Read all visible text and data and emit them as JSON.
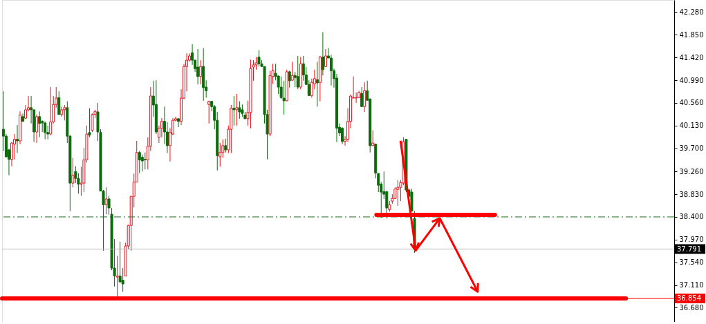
{
  "chart_data": {
    "type": "candlestick",
    "categories": [
      null,
      null,
      null,
      null,
      null,
      null,
      null,
      null,
      null,
      null,
      null,
      null,
      null,
      null,
      null,
      null,
      null,
      null,
      null,
      null,
      null,
      null,
      null,
      null,
      null,
      null,
      null,
      null,
      null,
      null,
      null,
      null,
      null,
      null,
      null,
      null,
      null,
      null,
      null,
      null,
      null,
      null,
      null,
      null,
      null,
      null,
      null,
      null,
      null,
      null,
      null,
      null,
      null,
      null,
      null,
      null,
      null,
      null,
      null,
      null,
      null,
      null,
      null,
      null,
      null,
      null,
      null,
      null,
      null,
      null,
      null,
      null,
      null,
      null,
      null,
      null,
      null,
      null,
      null,
      null,
      null,
      null,
      null,
      null,
      null,
      null,
      null,
      null,
      null,
      null,
      null,
      null,
      null,
      null,
      null,
      null,
      null,
      null,
      null,
      null,
      null,
      null,
      null,
      null,
      null,
      null,
      null,
      null,
      null,
      null,
      null,
      null,
      null,
      null,
      null,
      null,
      null,
      null,
      null,
      null,
      null,
      null,
      null,
      null,
      null,
      null,
      null,
      null,
      null,
      null,
      null,
      null,
      null,
      null,
      null,
      null,
      null,
      null,
      null,
      null,
      null,
      null,
      null,
      null,
      null,
      null,
      null,
      null,
      null,
      null,
      null,
      null,
      null,
      null,
      null,
      null,
      null,
      null,
      null,
      null,
      null,
      null,
      null,
      null,
      null,
      null,
      null,
      null,
      null,
      null,
      null,
      null,
      null,
      null,
      null,
      null,
      null,
      null,
      null,
      null,
      null,
      null,
      null,
      null,
      null,
      null,
      null,
      null,
      null,
      null,
      null,
      null,
      null,
      null,
      null,
      null,
      null,
      null,
      null,
      null,
      null,
      null,
      null,
      null,
      null,
      null,
      null,
      null,
      null,
      null,
      null,
      null,
      null,
      null,
      null,
      null,
      null,
      null,
      null,
      null,
      null,
      null,
      null,
      null,
      null,
      null,
      null,
      null,
      null,
      null,
      null,
      null,
      null,
      null,
      null,
      null,
      null,
      null,
      null,
      null,
      null,
      null
    ],
    "ohlc": [
      [
        40.06,
        40.78,
        39.65,
        39.93
      ],
      [
        39.93,
        39.97,
        39.52,
        39.54
      ],
      [
        39.67,
        39.69,
        39.19,
        39.49
      ],
      [
        39.49,
        39.82,
        39.36,
        39.8
      ],
      [
        39.78,
        39.97,
        39.49,
        39.87
      ],
      [
        39.87,
        40.14,
        39.61,
        39.84
      ],
      [
        39.84,
        40.4,
        39.78,
        40.33
      ],
      [
        40.3,
        40.36,
        40.21,
        40.21
      ],
      [
        40.27,
        40.52,
        40.26,
        40.43
      ],
      [
        40.43,
        40.69,
        40.4,
        40.47
      ],
      [
        40.47,
        40.69,
        40.17,
        40.43
      ],
      [
        40.43,
        40.43,
        39.82,
        40.01
      ],
      [
        40.01,
        40.34,
        39.8,
        40.3
      ],
      [
        40.3,
        40.4,
        39.91,
        40.17
      ],
      [
        40.21,
        40.23,
        40.01,
        40.18
      ],
      [
        40.18,
        40.21,
        39.87,
        40.0
      ],
      [
        40.0,
        40.13,
        39.87,
        39.97
      ],
      [
        39.97,
        40.86,
        39.95,
        40.2
      ],
      [
        40.2,
        40.69,
        40.17,
        40.53
      ],
      [
        40.53,
        40.86,
        40.47,
        40.65
      ],
      [
        40.66,
        40.78,
        40.34,
        40.34
      ],
      [
        40.34,
        40.49,
        40.3,
        40.43
      ],
      [
        40.43,
        40.52,
        40.23,
        40.47
      ],
      [
        40.47,
        40.59,
        39.8,
        39.93
      ],
      [
        39.93,
        39.95,
        38.51,
        39.04
      ],
      [
        39.04,
        39.52,
        38.96,
        39.19
      ],
      [
        39.26,
        39.36,
        39.04,
        39.13
      ],
      [
        39.13,
        39.23,
        38.84,
        39.02
      ],
      [
        39.02,
        39.35,
        38.8,
        39.04
      ],
      [
        39.04,
        39.71,
        38.87,
        39.48
      ],
      [
        39.48,
        40.13,
        39.43,
        39.97
      ],
      [
        40.0,
        40.46,
        39.91,
        39.95
      ],
      [
        40.04,
        40.36,
        40.01,
        40.34
      ],
      [
        40.34,
        40.43,
        40.27,
        40.4
      ],
      [
        40.39,
        40.56,
        39.84,
        40.01
      ],
      [
        40.0,
        40.06,
        38.89,
        38.89
      ],
      [
        38.89,
        38.91,
        37.76,
        38.63
      ],
      [
        38.63,
        38.96,
        38.45,
        38.74
      ],
      [
        38.74,
        38.8,
        38.44,
        38.57
      ],
      [
        38.45,
        38.57,
        37.39,
        37.43
      ],
      [
        37.43,
        37.98,
        37.08,
        37.28
      ],
      [
        37.26,
        37.66,
        36.87,
        37.28
      ],
      [
        37.28,
        37.93,
        37.15,
        37.17
      ],
      [
        37.2,
        37.43,
        36.98,
        37.13
      ],
      [
        37.28,
        37.91,
        37.28,
        37.85
      ],
      [
        37.85,
        38.25,
        37.78,
        38.24
      ],
      [
        38.24,
        38.79,
        37.76,
        38.79
      ],
      [
        38.79,
        39.22,
        38.58,
        39.06
      ],
      [
        39.06,
        39.84,
        39.06,
        39.62
      ],
      [
        39.62,
        39.65,
        39.23,
        39.48
      ],
      [
        39.53,
        39.58,
        39.26,
        39.46
      ],
      [
        39.49,
        39.62,
        39.3,
        39.48
      ],
      [
        39.48,
        39.91,
        39.3,
        39.74
      ],
      [
        39.74,
        40.86,
        39.65,
        40.69
      ],
      [
        40.69,
        40.98,
        40.3,
        40.52
      ],
      [
        40.53,
        40.99,
        39.97,
        40.01
      ],
      [
        39.91,
        40.13,
        39.8,
        40.08
      ],
      [
        40.08,
        40.27,
        39.91,
        40.21
      ],
      [
        40.21,
        40.49,
        39.78,
        40.01
      ],
      [
        40.01,
        40.2,
        39.61,
        39.75
      ],
      [
        39.75,
        40.08,
        39.45,
        40.0
      ],
      [
        39.97,
        40.27,
        39.95,
        40.23
      ],
      [
        40.23,
        40.3,
        40.21,
        40.26
      ],
      [
        40.26,
        40.27,
        40.1,
        40.21
      ],
      [
        40.21,
        40.82,
        40.14,
        40.65
      ],
      [
        40.65,
        41.3,
        40.63,
        41.25
      ],
      [
        41.25,
        41.5,
        40.78,
        41.37
      ],
      [
        41.37,
        41.5,
        41.34,
        41.45
      ],
      [
        41.51,
        41.67,
        41.28,
        41.37
      ],
      [
        41.37,
        41.38,
        41.15,
        41.21
      ],
      [
        41.24,
        41.58,
        40.91,
        41.06
      ],
      [
        41.06,
        41.37,
        40.91,
        41.25
      ],
      [
        41.25,
        41.6,
        40.6,
        40.85
      ],
      [
        40.86,
        40.99,
        40.66,
        40.79
      ],
      [
        40.53,
        40.6,
        40.17,
        40.59
      ],
      [
        40.59,
        40.6,
        40.4,
        40.49
      ],
      [
        40.49,
        40.52,
        40.06,
        40.23
      ],
      [
        40.23,
        40.39,
        39.28,
        39.56
      ],
      [
        39.54,
        39.8,
        39.35,
        39.62
      ],
      [
        39.62,
        39.87,
        39.52,
        39.75
      ],
      [
        39.75,
        39.88,
        39.62,
        39.67
      ],
      [
        39.67,
        40.13,
        39.61,
        40.06
      ],
      [
        40.06,
        40.52,
        39.61,
        40.46
      ],
      [
        40.46,
        40.69,
        40.13,
        40.43
      ],
      [
        40.43,
        40.73,
        40.13,
        40.47
      ],
      [
        40.47,
        40.59,
        40.26,
        40.39
      ],
      [
        40.43,
        40.53,
        40.3,
        40.36
      ],
      [
        40.33,
        40.39,
        40.26,
        40.26
      ],
      [
        40.26,
        40.6,
        40.13,
        40.38
      ],
      [
        40.38,
        41.38,
        40.08,
        41.21
      ],
      [
        41.24,
        41.37,
        40.98,
        41.28
      ],
      [
        41.28,
        41.43,
        41.19,
        41.32
      ],
      [
        41.43,
        41.56,
        41.25,
        41.3
      ],
      [
        41.3,
        41.37,
        41.25,
        41.25
      ],
      [
        41.25,
        41.25,
        40.17,
        40.34
      ],
      [
        40.34,
        40.43,
        39.49,
        39.97
      ],
      [
        39.97,
        41.17,
        39.93,
        41.08
      ],
      [
        41.06,
        41.3,
        40.92,
        41.17
      ],
      [
        41.12,
        41.3,
        40.99,
        41.06
      ],
      [
        41.07,
        41.08,
        40.73,
        40.86
      ],
      [
        40.86,
        41.06,
        40.63,
        40.66
      ],
      [
        40.65,
        40.98,
        40.34,
        40.6
      ],
      [
        40.6,
        41.19,
        40.59,
        41.15
      ],
      [
        41.15,
        41.17,
        40.85,
        40.98
      ],
      [
        40.99,
        41.34,
        40.98,
        41.08
      ],
      [
        41.08,
        41.15,
        40.86,
        41.04
      ],
      [
        41.06,
        41.45,
        40.82,
        40.86
      ],
      [
        40.86,
        41.43,
        40.82,
        41.3
      ],
      [
        41.3,
        41.45,
        40.98,
        41.09
      ],
      [
        41.09,
        41.24,
        40.91,
        40.91
      ],
      [
        40.91,
        40.99,
        40.69,
        40.7
      ],
      [
        40.7,
        41.02,
        40.66,
        40.95
      ],
      [
        40.92,
        41.19,
        40.82,
        41.02
      ],
      [
        41.0,
        41.34,
        40.49,
        40.94
      ],
      [
        40.95,
        41.45,
        40.59,
        41.43
      ],
      [
        41.43,
        41.9,
        41.08,
        41.19
      ],
      [
        41.25,
        41.58,
        41.24,
        41.45
      ],
      [
        41.45,
        41.6,
        41.41,
        41.41
      ],
      [
        41.41,
        41.47,
        40.89,
        41.17
      ],
      [
        41.17,
        41.21,
        40.85,
        41.02
      ],
      [
        41.03,
        41.11,
        39.82,
        40.08
      ],
      [
        40.1,
        40.17,
        39.93,
        39.99
      ],
      [
        40.08,
        40.1,
        39.78,
        39.83
      ],
      [
        39.83,
        39.93,
        39.75,
        39.87
      ],
      [
        39.87,
        40.46,
        39.82,
        40.21
      ],
      [
        40.21,
        40.72,
        40.08,
        40.69
      ],
      [
        40.65,
        41.06,
        40.65,
        40.66
      ],
      [
        40.65,
        40.76,
        40.56,
        40.66
      ],
      [
        40.66,
        40.79,
        40.65,
        40.76
      ],
      [
        40.74,
        40.86,
        40.49,
        40.49
      ],
      [
        40.49,
        40.95,
        40.39,
        40.79
      ],
      [
        40.79,
        40.98,
        40.6,
        40.61
      ],
      [
        40.63,
        40.65,
        39.62,
        39.75
      ],
      [
        39.75,
        40.04,
        39.75,
        39.8
      ],
      [
        39.78,
        39.79,
        39.13,
        39.23
      ],
      [
        39.22,
        39.23,
        38.87,
        39.0
      ],
      [
        39.02,
        39.06,
        38.38,
        38.87
      ],
      [
        38.88,
        39.26,
        38.74,
        38.83
      ],
      [
        38.88,
        38.89,
        38.37,
        38.57
      ],
      [
        38.54,
        38.7,
        38.5,
        38.63
      ],
      [
        38.7,
        38.83,
        38.65,
        38.75
      ],
      [
        38.75,
        38.96,
        38.74,
        38.93
      ],
      [
        38.92,
        39.1,
        38.61,
        38.96
      ],
      [
        38.96,
        39.1,
        38.7,
        39.05
      ],
      [
        39.04,
        39.91,
        39.0,
        39.82
      ],
      [
        39.87,
        39.87,
        38.87,
        38.91
      ],
      [
        38.91,
        38.93,
        38.79,
        38.79
      ],
      [
        38.87,
        38.93,
        38.5,
        38.51
      ],
      [
        38.37,
        38.51,
        37.72,
        37.8
      ],
      null,
      null,
      null,
      null,
      null,
      null,
      null,
      null,
      null,
      null,
      null,
      null,
      null,
      null,
      null,
      null,
      null,
      null,
      null,
      null,
      null,
      null,
      null,
      null,
      null,
      null,
      null,
      null,
      null,
      null,
      null,
      null,
      null,
      null,
      null,
      null,
      null,
      null,
      null,
      null,
      null,
      null,
      null,
      null,
      null,
      null,
      null,
      null,
      null,
      null,
      null,
      null,
      null,
      null,
      null,
      null,
      null,
      null,
      null,
      null,
      null,
      null,
      null,
      null,
      null,
      null,
      null,
      null,
      null,
      null,
      null,
      null,
      null,
      null,
      null,
      null,
      null,
      null,
      null,
      null,
      null,
      null,
      null,
      null,
      null,
      null,
      null,
      null,
      null,
      null,
      null,
      null,
      null
    ],
    "colors": [
      "#0b6b0b",
      "#0b6b0b",
      "#0b6b0b",
      "#e8111b",
      "#e8111b",
      "#0b6b0b",
      "#e8111b",
      "#0b6b0b",
      "#e8111b",
      "#e8111b",
      "#0b6b0b",
      "#0b6b0b",
      "#e8111b",
      "#0b6b0b",
      "#0b6b0b",
      "#0b6b0b",
      "#0b6b0b",
      "#e8111b",
      "#e8111b",
      "#e8111b",
      "#0b6b0b",
      "#e8111b",
      "#e8111b",
      "#0b6b0b",
      "#0b6b0b",
      "#e8111b",
      "#0b6b0b",
      "#0b6b0b",
      "#e8111b",
      "#e8111b",
      "#e8111b",
      "#0b6b0b",
      "#e8111b",
      "#e8111b",
      "#0b6b0b",
      "#0b6b0b",
      "#0b6b0b",
      "#e8111b",
      "#0b6b0b",
      "#0b6b0b",
      "#0b6b0b",
      "#e8111b",
      "#0b6b0b",
      "#0b6b0b",
      "#e8111b",
      "#e8111b",
      "#e8111b",
      "#e8111b",
      "#e8111b",
      "#0b6b0b",
      "#0b6b0b",
      "#0b6b0b",
      "#e8111b",
      "#e8111b",
      "#0b6b0b",
      "#0b6b0b",
      "#e8111b",
      "#e8111b",
      "#0b6b0b",
      "#0b6b0b",
      "#e8111b",
      "#e8111b",
      "#e8111b",
      "#0b6b0b",
      "#e8111b",
      "#e8111b",
      "#e8111b",
      "#e8111b",
      "#0b6b0b",
      "#0b6b0b",
      "#0b6b0b",
      "#e8111b",
      "#0b6b0b",
      "#0b6b0b",
      "#e8111b",
      "#0b6b0b",
      "#0b6b0b",
      "#0b6b0b",
      "#e8111b",
      "#e8111b",
      "#0b6b0b",
      "#e8111b",
      "#e8111b",
      "#0b6b0b",
      "#e8111b",
      "#0b6b0b",
      "#0b6b0b",
      "#0b6b0b",
      "#e8111b",
      "#e8111b",
      "#e8111b",
      "#e8111b",
      "#0b6b0b",
      "#0b6b0b",
      "#0b6b0b",
      "#0b6b0b",
      "#e8111b",
      "#e8111b",
      "#0b6b0b",
      "#0b6b0b",
      "#0b6b0b",
      "#0b6b0b",
      "#e8111b",
      "#0b6b0b",
      "#e8111b",
      "#0b6b0b",
      "#0b6b0b",
      "#e8111b",
      "#0b6b0b",
      "#0b6b0b",
      "#0b6b0b",
      "#e8111b",
      "#e8111b",
      "#0b6b0b",
      "#e8111b",
      "#0b6b0b",
      "#e8111b",
      "#0b6b0b",
      "#0b6b0b",
      "#0b6b0b",
      "#0b6b0b",
      "#0b6b0b",
      "#0b6b0b",
      "#e8111b",
      "#e8111b",
      "#e8111b",
      "#e8111b",
      "#e8111b",
      "#e8111b",
      "#0b6b0b",
      "#e8111b",
      "#0b6b0b",
      "#0b6b0b",
      "#e8111b",
      "#0b6b0b",
      "#0b6b0b",
      "#0b6b0b",
      "#0b6b0b",
      "#0b6b0b",
      "#e8111b",
      "#e8111b",
      "#e8111b",
      "#e8111b",
      "#e8111b",
      "#e8111b",
      "#0b6b0b",
      "#0b6b0b",
      "#0b6b0b",
      "#0b6b0b",
      null,
      null,
      null,
      null,
      null,
      null,
      null,
      null,
      null,
      null,
      null,
      null,
      null,
      null,
      null,
      null,
      null,
      null,
      null,
      null,
      null,
      null,
      null,
      null,
      null,
      null,
      null,
      null,
      null,
      null,
      null,
      null,
      null,
      null,
      null,
      null,
      null,
      null,
      null,
      null,
      null,
      null,
      null,
      null,
      null,
      null,
      null,
      null,
      null,
      null,
      null,
      null,
      null,
      null,
      null,
      null,
      null,
      null,
      null,
      null,
      null,
      null,
      null,
      null,
      null,
      null,
      null,
      null,
      null,
      null,
      null,
      null,
      null,
      null,
      null,
      null,
      null,
      null,
      null,
      null,
      null,
      null,
      null,
      null,
      null,
      null,
      null,
      null,
      null,
      null,
      null,
      null,
      null
    ],
    "ylim": [
      36.41,
      42.51
    ],
    "yticks": [
      {
        "value": 42.28,
        "label": "42.280"
      },
      {
        "value": 41.85,
        "label": "41.850"
      },
      {
        "value": 41.42,
        "label": "41.420"
      },
      {
        "value": 40.99,
        "label": "40.990"
      },
      {
        "value": 40.56,
        "label": "40.560"
      },
      {
        "value": 40.13,
        "label": "40.130"
      },
      {
        "value": 39.7,
        "label": "39.700"
      },
      {
        "value": 39.26,
        "label": "39.260"
      },
      {
        "value": 38.83,
        "label": "38.830"
      },
      {
        "value": 38.4,
        "label": "38.400"
      },
      {
        "value": 37.97,
        "label": "37.970"
      },
      {
        "value": 37.54,
        "label": "37.540"
      },
      {
        "value": 37.11,
        "label": "37.110"
      },
      {
        "value": 36.68,
        "label": "36.680"
      }
    ],
    "tick_labels": "y",
    "grid": false,
    "ref_lines": [
      {
        "axis": "y",
        "value": 38.4,
        "color": "#1a6e1a",
        "line_style": "dashed"
      },
      {
        "axis": "y",
        "value": 37.791,
        "label": "37.791",
        "color": "#b4b4b4"
      },
      {
        "axis": "y",
        "value": 36.854,
        "label": "36.854",
        "color": "#ff0000"
      }
    ]
  }
}
